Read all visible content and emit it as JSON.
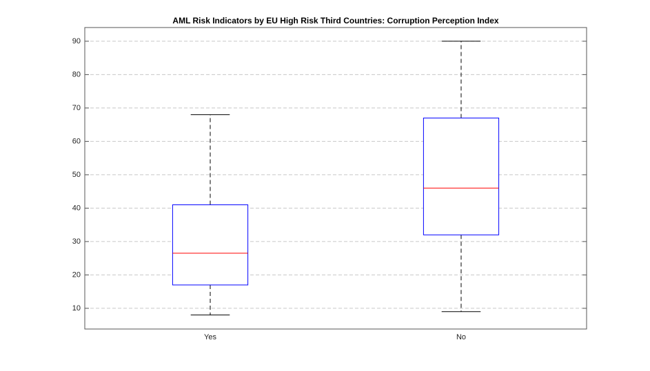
{
  "chart_data": {
    "type": "box",
    "title": "AML Risk Indicators by EU High Risk Third Countries: Corruption Perception Index",
    "categories": [
      "Yes",
      "No"
    ],
    "boxes": [
      {
        "whislo": 8,
        "q1": 17,
        "median": 26.5,
        "q3": 41,
        "whishi": 68
      },
      {
        "whislo": 9,
        "q1": 32,
        "median": 46,
        "q3": 67,
        "whishi": 90
      }
    ],
    "box_color": "#0000ff",
    "median_color": "#ff0000",
    "whisker_color": "#000000",
    "ylim": [
      3.8,
      94.1
    ],
    "yticks": [
      10,
      20,
      30,
      40,
      50,
      60,
      70,
      80,
      90
    ],
    "grid": true
  }
}
